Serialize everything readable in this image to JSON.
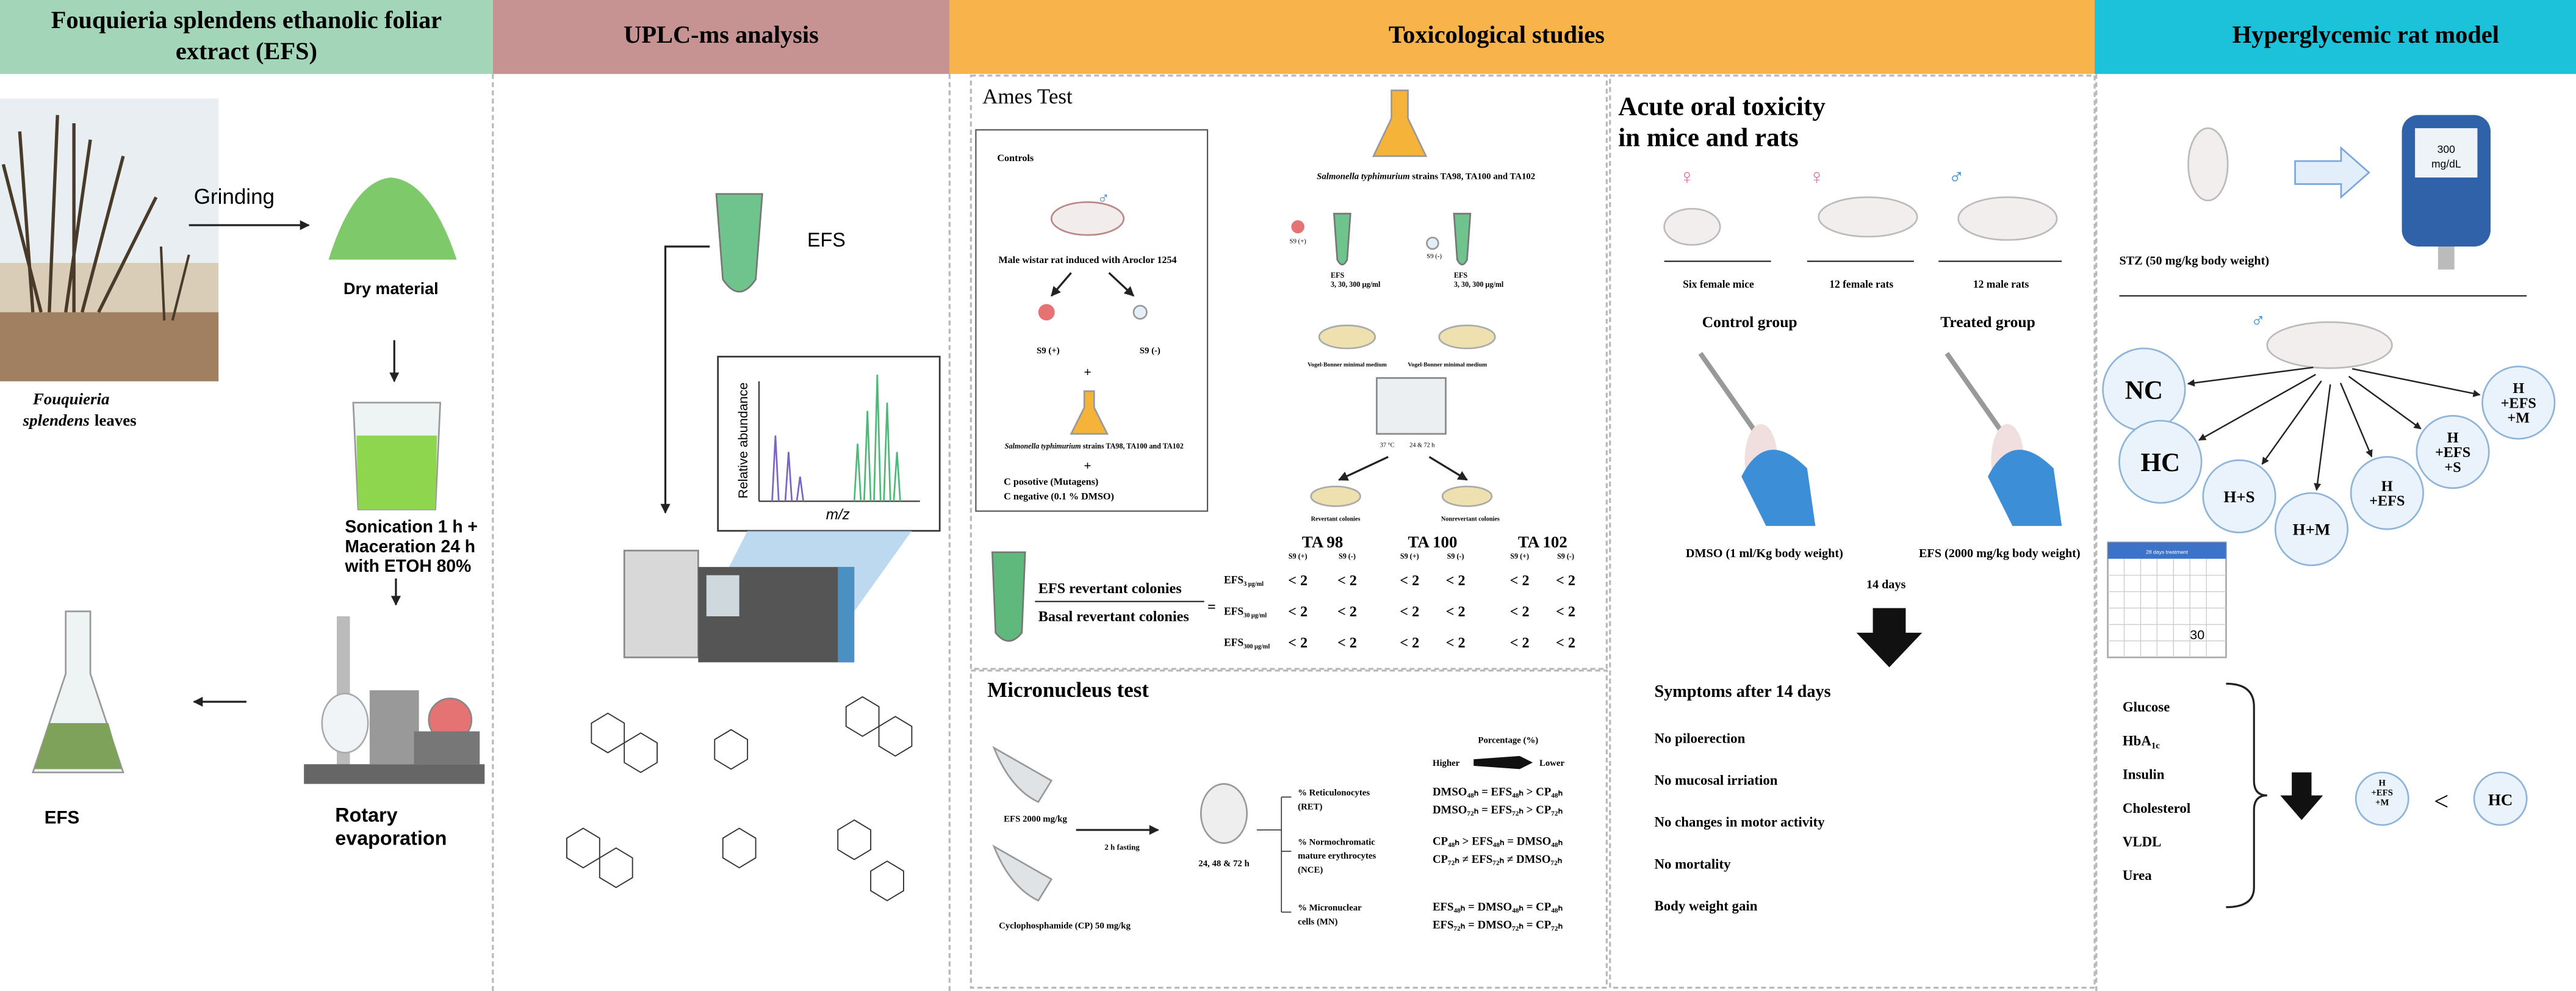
{
  "headers": {
    "extract": [
      "Fouquieria splendens ethanolic foliar",
      "extract (EFS)"
    ],
    "uplc": "UPLC-ms analysis",
    "toxicology": "Toxicological studies",
    "model": "Hyperglycemic rat model"
  },
  "extraction": {
    "grinding": "Grinding",
    "dry_material": "Dry material",
    "leaves_italic": [
      "Fouquieria",
      "splendens"
    ],
    "leaves_word": "leaves",
    "sonication": [
      "Sonication 1 h +",
      "Maceration 24 h",
      "with ETOH 80%"
    ],
    "rotary": [
      "Rotary",
      "evaporation"
    ],
    "product": "EFS"
  },
  "uplc": {
    "sample": "EFS",
    "y_axis": "Relative abundance",
    "x_axis": "m/z"
  },
  "ames": {
    "title": "Ames Test",
    "controls": {
      "title": "Controls",
      "male_symbol": "♂",
      "rat": "Male wistar rat induced with Aroclor 1254",
      "s9_plus": "S9 (+)",
      "s9_minus": "S9 (-)",
      "plus": [
        "+",
        "+"
      ],
      "strains": [
        "Salmonella typhimurium",
        " strains TA98, TA100  and TA102"
      ],
      "positive": "C posotive (Mutagens)",
      "negative": "C negative (0.1 % DMSO)"
    },
    "assay": {
      "strains": [
        "Salmonella typhimurium",
        " strains TA98, TA100 and TA102"
      ],
      "s9_plus": "S9 (+)",
      "s9_minus": "S9 (-)",
      "efs": [
        "EFS",
        "3, 30, 300 µg/ml"
      ],
      "medium": "Vogel-Bonner minimal medium",
      "temperature": "37 °C",
      "time": "24 & 72 h",
      "revertant": "Revertant colonies",
      "nonrevertant": "Nonrevertant colonies"
    },
    "ratio": {
      "numerator": "EFS revertant colonies",
      "denominator": "Basal revertant colonies",
      "equals": "="
    },
    "table": {
      "strains": [
        "TA 98",
        "TA 100",
        "TA 102"
      ],
      "conditions": [
        "S9 (+)",
        "S9 (-)"
      ],
      "rows": [
        {
          "label": "EFS",
          "dose": "3 µg/ml",
          "cells": [
            "< 2",
            "< 2",
            "< 2",
            "< 2",
            "< 2",
            "< 2"
          ]
        },
        {
          "label": "EFS",
          "dose": "30 µg/ml",
          "cells": [
            "< 2",
            "< 2",
            "< 2",
            "< 2",
            "< 2",
            "< 2"
          ]
        },
        {
          "label": "EFS",
          "dose": "300 µg/ml",
          "cells": [
            "< 2",
            "< 2",
            "< 2",
            "< 2",
            "< 2",
            "< 2"
          ]
        }
      ]
    }
  },
  "micronucleus": {
    "title": "Micronucleus test",
    "efs_dose": "EFS 2000 mg/kg",
    "cp_dose": "Cyclophosphamide (CP) 50 mg/kg",
    "fasting": "2 h fasting",
    "time": "24, 48 & 72 h",
    "percentage": "Porcentage (%)",
    "higher": "Higher",
    "lower": "Lower",
    "rows": [
      {
        "label": [
          "% Reticulonocytes",
          "(RET)"
        ],
        "results": [
          "DMSO₄₈ₕ = EFS₄₈ₕ > CP₄₈ₕ",
          "DMSO₇₂ₕ = EFS₇₂ₕ > CP₇₂ₕ"
        ]
      },
      {
        "label": [
          "% Normochromatic",
          "mature erythrocytes",
          "(NCE)"
        ],
        "results": [
          "CP₄₈ₕ > EFS₄₈ₕ = DMSO₄₈ₕ",
          "CP₇₂ₕ ≠ EFS₇₂ₕ ≠ DMSO₇₂ₕ"
        ]
      },
      {
        "label": [
          "% Micronuclear",
          "cells (MN)"
        ],
        "results": [
          "EFS₄₈ₕ = DMSO₄₈ₕ = CP₄₈ₕ",
          "EFS₇₂ₕ = DMSO₇₂ₕ = CP₇₂ₕ"
        ]
      }
    ]
  },
  "acute": {
    "title": [
      "Acute oral toxicity",
      "in mice and rats"
    ],
    "animals": [
      {
        "symbol": "♀",
        "label": "Six female mice"
      },
      {
        "symbol": "♀",
        "label": "12 female rats"
      },
      {
        "symbol": "♂",
        "label": "12  male rats"
      }
    ],
    "control": "Control group",
    "treated": "Treated  group",
    "control_dose": "DMSO (1 ml/Kg body weight)",
    "treated_dose": "EFS (2000 mg/kg body weight)",
    "duration": "14 days",
    "symptoms_title": "Symptoms after 14 days",
    "symptoms": [
      "No piloerection",
      "No mucosal irriation",
      "No changes in motor activity",
      "No mortality",
      "Body weight gain"
    ]
  },
  "model": {
    "meter": [
      "300",
      "mg/dL"
    ],
    "stz": "STZ (50 mg/kg body weight)",
    "male_symbol": "♂",
    "groups": [
      [
        "NC"
      ],
      [
        "HC"
      ],
      [
        "H+S"
      ],
      [
        "H+M"
      ],
      [
        "H",
        "+EFS"
      ],
      [
        "H",
        "+EFS",
        "+S"
      ],
      [
        "H",
        "+EFS",
        "+M"
      ]
    ],
    "calendar": {
      "title": "28 days treatment",
      "day": "30"
    },
    "markers": [
      [
        "Glucose"
      ],
      [
        "HbA",
        "1c"
      ],
      [
        "Insulin"
      ],
      [
        "Cholesterol"
      ],
      [
        "VLDL"
      ],
      [
        "Urea"
      ]
    ],
    "comparison": {
      "left": [
        "H",
        "+EFS",
        "+M"
      ],
      "relation": "<",
      "right": "HC"
    }
  }
}
